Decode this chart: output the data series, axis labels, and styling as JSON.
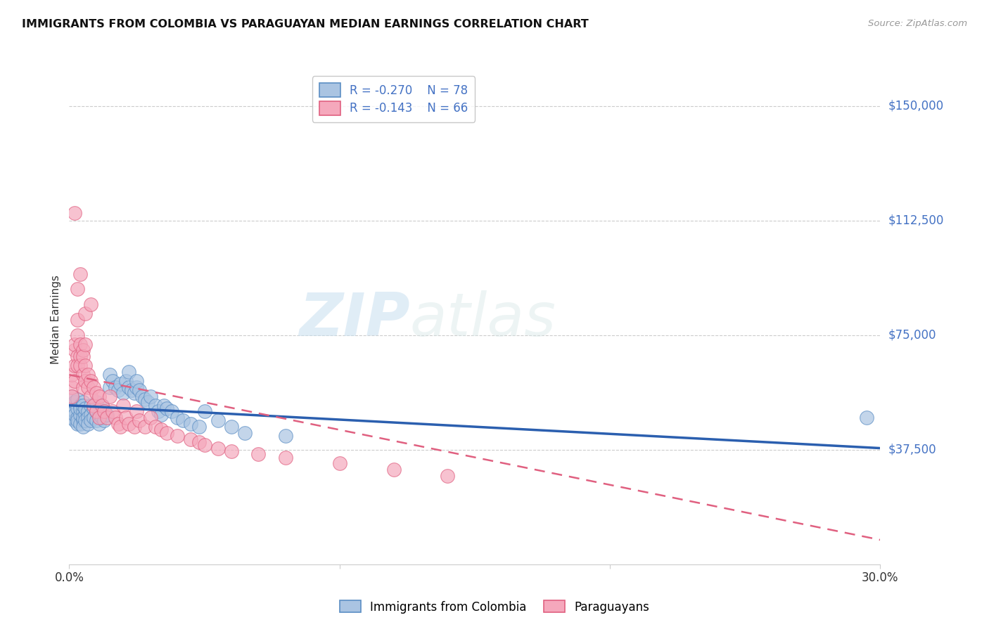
{
  "title": "IMMIGRANTS FROM COLOMBIA VS PARAGUAYAN MEDIAN EARNINGS CORRELATION CHART",
  "source": "Source: ZipAtlas.com",
  "ylabel": "Median Earnings",
  "y_ticks": [
    37500,
    75000,
    112500,
    150000
  ],
  "y_tick_labels": [
    "$37,500",
    "$75,000",
    "$112,500",
    "$150,000"
  ],
  "xlim": [
    0.0,
    0.3
  ],
  "ylim": [
    0,
    160000
  ],
  "color_colombia": "#aac4e2",
  "color_colombia_edge": "#5b8ec4",
  "color_paraguay": "#f5a8bc",
  "color_paraguay_edge": "#e06080",
  "color_colombia_line": "#2b5faf",
  "color_paraguay_line": "#e06080",
  "color_axis_labels": "#4472c4",
  "color_grid": "#cccccc",
  "watermark_zip": "ZIP",
  "watermark_atlas": "atlas",
  "legend_label1": "Immigrants from Colombia",
  "legend_label2": "Paraguayans",
  "legend_r1": "-0.270",
  "legend_n1": "78",
  "legend_r2": "-0.143",
  "legend_n2": "66",
  "colombia_x": [
    0.001,
    0.001,
    0.001,
    0.002,
    0.002,
    0.002,
    0.002,
    0.003,
    0.003,
    0.003,
    0.003,
    0.003,
    0.004,
    0.004,
    0.004,
    0.004,
    0.005,
    0.005,
    0.005,
    0.005,
    0.005,
    0.005,
    0.006,
    0.006,
    0.006,
    0.007,
    0.007,
    0.007,
    0.008,
    0.008,
    0.008,
    0.009,
    0.009,
    0.01,
    0.01,
    0.01,
    0.011,
    0.011,
    0.012,
    0.012,
    0.013,
    0.013,
    0.014,
    0.015,
    0.015,
    0.016,
    0.017,
    0.018,
    0.019,
    0.02,
    0.021,
    0.022,
    0.022,
    0.023,
    0.024,
    0.025,
    0.025,
    0.026,
    0.027,
    0.028,
    0.029,
    0.03,
    0.032,
    0.033,
    0.034,
    0.035,
    0.036,
    0.038,
    0.04,
    0.042,
    0.045,
    0.048,
    0.05,
    0.055,
    0.06,
    0.065,
    0.08,
    0.295
  ],
  "colombia_y": [
    55000,
    48000,
    52000,
    50000,
    47000,
    53000,
    49000,
    48000,
    51000,
    46000,
    54000,
    47000,
    52000,
    49000,
    46000,
    51000,
    50000,
    47000,
    53000,
    48000,
    45000,
    52000,
    49000,
    47000,
    51000,
    50000,
    48000,
    46000,
    52000,
    49000,
    47000,
    51000,
    48000,
    50000,
    47000,
    53000,
    49000,
    46000,
    52000,
    48000,
    50000,
    47000,
    49000,
    58000,
    62000,
    60000,
    58000,
    57000,
    59000,
    56000,
    60000,
    63000,
    58000,
    57000,
    56000,
    58000,
    60000,
    57000,
    55000,
    54000,
    53000,
    55000,
    52000,
    50000,
    49000,
    52000,
    51000,
    50000,
    48000,
    47000,
    46000,
    45000,
    50000,
    47000,
    45000,
    43000,
    42000,
    48000
  ],
  "paraguay_x": [
    0.001,
    0.001,
    0.001,
    0.002,
    0.002,
    0.002,
    0.002,
    0.003,
    0.003,
    0.003,
    0.003,
    0.004,
    0.004,
    0.004,
    0.005,
    0.005,
    0.005,
    0.005,
    0.006,
    0.006,
    0.006,
    0.007,
    0.007,
    0.008,
    0.008,
    0.009,
    0.009,
    0.01,
    0.01,
    0.011,
    0.011,
    0.012,
    0.013,
    0.014,
    0.015,
    0.016,
    0.017,
    0.018,
    0.019,
    0.02,
    0.021,
    0.022,
    0.024,
    0.025,
    0.026,
    0.028,
    0.03,
    0.032,
    0.034,
    0.036,
    0.04,
    0.045,
    0.048,
    0.05,
    0.055,
    0.06,
    0.07,
    0.08,
    0.1,
    0.12,
    0.14,
    0.003,
    0.004,
    0.002,
    0.006,
    0.008
  ],
  "paraguay_y": [
    58000,
    55000,
    62000,
    65000,
    60000,
    70000,
    72000,
    75000,
    68000,
    65000,
    80000,
    72000,
    68000,
    65000,
    70000,
    62000,
    68000,
    58000,
    65000,
    60000,
    72000,
    58000,
    62000,
    60000,
    55000,
    58000,
    52000,
    56000,
    50000,
    55000,
    48000,
    52000,
    50000,
    48000,
    55000,
    50000,
    48000,
    46000,
    45000,
    52000,
    48000,
    46000,
    45000,
    50000,
    47000,
    45000,
    48000,
    45000,
    44000,
    43000,
    42000,
    41000,
    40000,
    39000,
    38000,
    37000,
    36000,
    35000,
    33000,
    31000,
    29000,
    90000,
    95000,
    115000,
    82000,
    85000
  ],
  "colombia_trend_x": [
    0.0,
    0.3
  ],
  "colombia_trend_y": [
    52000,
    38000
  ],
  "paraguay_trend_x": [
    0.0,
    0.3
  ],
  "paraguay_trend_y": [
    62000,
    8000
  ]
}
